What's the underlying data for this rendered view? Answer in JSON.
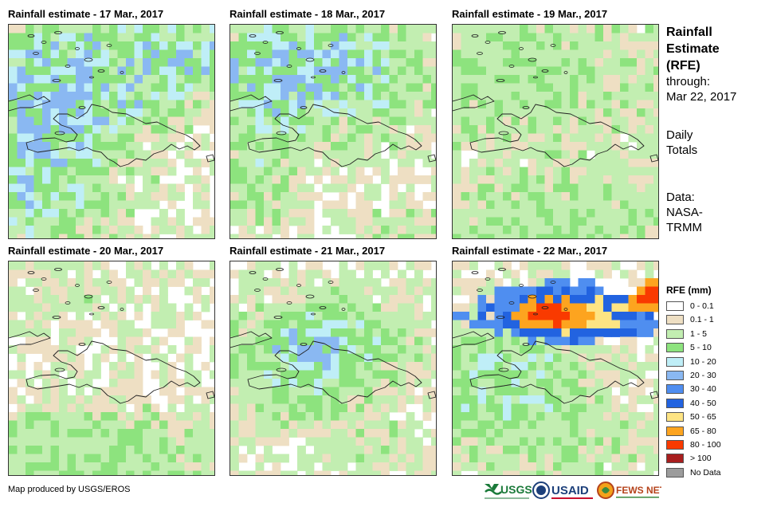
{
  "panels": [
    {
      "title": "Rainfall estimate - 17 Mar., 2017"
    },
    {
      "title": "Rainfall estimate - 18 Mar., 2017"
    },
    {
      "title": "Rainfall estimate - 19 Mar., 2017"
    },
    {
      "title": "Rainfall estimate - 20 Mar., 2017"
    },
    {
      "title": "Rainfall estimate - 21 Mar., 2017"
    },
    {
      "title": "Rainfall estimate - 22 Mar., 2017"
    }
  ],
  "side_info": {
    "title_lines": [
      "Rainfall",
      "Estimate",
      "(RFE)"
    ],
    "through_label": "through:",
    "through_date": "Mar 22, 2017",
    "totals_lines": [
      "Daily",
      "Totals"
    ],
    "data_lines": [
      "Data:",
      "NASA-",
      "TRMM"
    ]
  },
  "legend": {
    "title": "RFE (mm)",
    "classes": [
      {
        "label": "0 - 0.1",
        "color": "#ffffff"
      },
      {
        "label": "0.1 - 1",
        "color": "#eedfc3"
      },
      {
        "label": "1 - 5",
        "color": "#c2eeb1"
      },
      {
        "label": "5 - 10",
        "color": "#8de37e"
      },
      {
        "label": "10 - 20",
        "color": "#bfeef7"
      },
      {
        "label": "20 - 30",
        "color": "#8ab8f2"
      },
      {
        "label": "30 - 40",
        "color": "#4f8ef0"
      },
      {
        "label": "40 - 50",
        "color": "#2263e0"
      },
      {
        "label": "50 - 65",
        "color": "#fee483"
      },
      {
        "label": "65 - 80",
        "color": "#fda41f"
      },
      {
        "label": "80 - 100",
        "color": "#f93a00"
      },
      {
        "label": "> 100",
        "color": "#a81e1e"
      },
      {
        "label": "No Data",
        "color": "#9c9c9c"
      }
    ]
  },
  "footer": {
    "credit": "Map produced by USGS/EROS",
    "logos": [
      "USGS",
      "USAID",
      "FEWS NET"
    ]
  }
}
